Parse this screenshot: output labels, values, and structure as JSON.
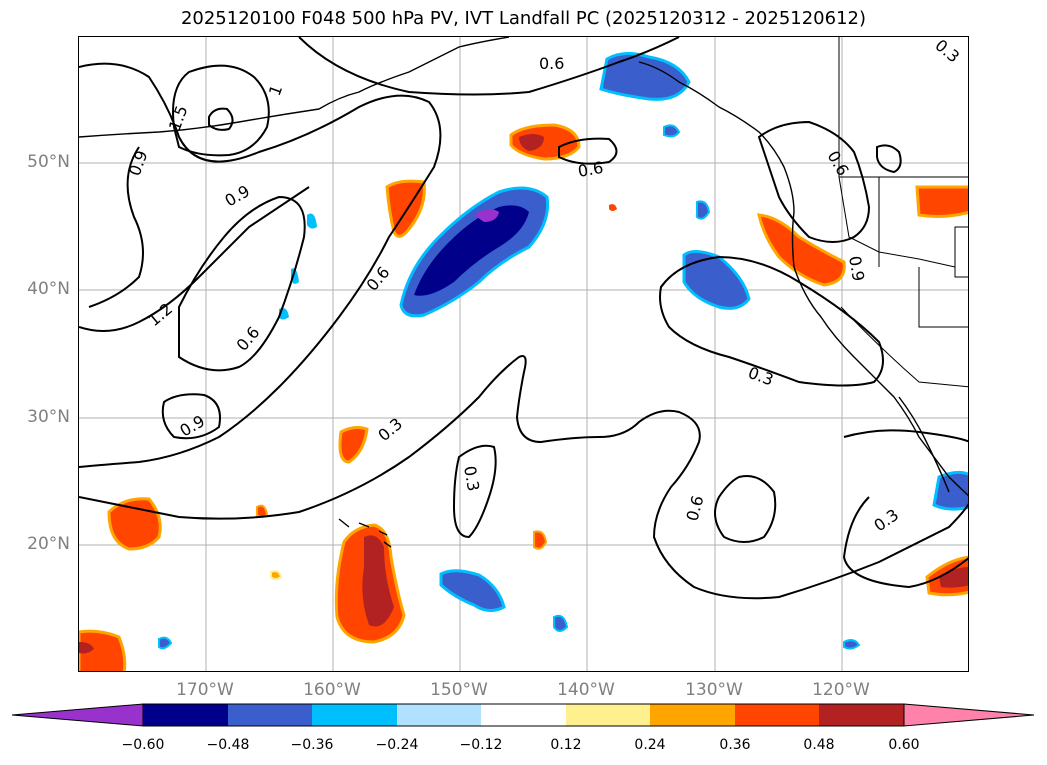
{
  "title": "2025120100 F048 500 hPa PV, IVT Landfall PC (2025120312 - 2025120612)",
  "latitude_labels": [
    {
      "id": "lat-50",
      "text": "50°N"
    },
    {
      "id": "lat-40",
      "text": "40°N"
    },
    {
      "id": "lat-30",
      "text": "30°N"
    },
    {
      "id": "lat-20",
      "text": "20°N"
    }
  ],
  "longitude_labels": [
    {
      "id": "lon-170w",
      "text": "170°W"
    },
    {
      "id": "lon-160w",
      "text": "160°W"
    },
    {
      "id": "lon-150w",
      "text": "150°W"
    },
    {
      "id": "lon-140w",
      "text": "140°W"
    },
    {
      "id": "lon-130w",
      "text": "130°W"
    },
    {
      "id": "lon-120w",
      "text": "120°W"
    }
  ],
  "contour_labels": [
    "0.6",
    "1.5",
    "1",
    "0.9",
    "0.9",
    "1.2",
    "0.6",
    "0.6",
    "0.3",
    "0.3",
    "0.6",
    "0.6",
    "0.3",
    "0.9",
    "0.3",
    "0.6",
    "0.9",
    "0.3",
    "0.6",
    "0.3",
    "0.9"
  ],
  "colorbar": {
    "ticks": [
      "−0.60",
      "−0.48",
      "−0.36",
      "−0.24",
      "−0.12",
      "0.12",
      "0.24",
      "0.36",
      "0.48",
      "0.60"
    ],
    "colors": [
      "#9932cc",
      "#00008b",
      "#3a5fcd",
      "#00bfff",
      "#b0e2ff",
      "#ffffff",
      "#fff08f",
      "#ffa500",
      "#ff4500",
      "#b22222",
      "#ff82ab"
    ]
  },
  "map": {
    "lon_range": [
      -180,
      -110
    ],
    "lat_range": [
      10,
      60
    ],
    "field_colors": {
      "strong_pos": "#b22222",
      "pos": "#ff4500",
      "mid_pos": "#ffa500",
      "weak_pos": "#fff08f",
      "strong_neg": "#9932cc",
      "neg": "#00008b",
      "mid_neg": "#3a5fcd",
      "weak_neg": "#00bfff"
    }
  }
}
